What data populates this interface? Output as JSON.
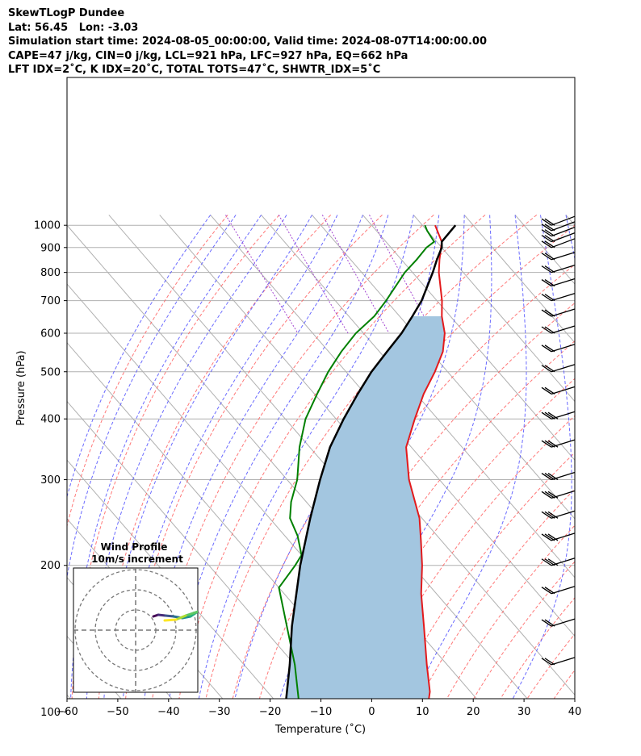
{
  "header": {
    "title": "SkewTLogP Dundee",
    "location": "Lat: 56.45   Lon: -3.03",
    "times": "Simulation start time: 2024-08-05_00:00:00, Valid time: 2024-08-07T14:00:00.00",
    "indices1": "CAPE=47 j/kg, CIN=0 j/kg, LCL=921 hPa, LFC=927 hPa, EQ=662 hPa",
    "indices2": "LFT IDX=2˚C, K IDX=20˚C, TOTAL TOTS=47˚C, SHWTR_IDX=5˚C"
  },
  "chart_data": {
    "type": "line",
    "skew": true,
    "xlabel": "Temperature (˚C)",
    "ylabel": "Pressure (hPa)",
    "xlim": [
      -60,
      40
    ],
    "ylim": [
      1050,
      100
    ],
    "y_scale": "log",
    "xticks": [
      -60,
      -50,
      -40,
      -30,
      -20,
      -10,
      0,
      10,
      20,
      30,
      40
    ],
    "xtick_labels": [
      "−60",
      "−50",
      "−40",
      "−30",
      "−20",
      "−10",
      "0",
      "10",
      "20",
      "30",
      "40"
    ],
    "yticks": [
      1000,
      900,
      800,
      700,
      600,
      500,
      400,
      300,
      200,
      100
    ],
    "grid": true,
    "colors": {
      "temperature": "#e31a1c",
      "dewpoint": "#008000",
      "parcel": "#000000",
      "cape_fill": "#a3c6e0",
      "dry_adiabats": "#ff6060",
      "moist_adiabats": "#5050ff",
      "isotherms": "#b0b0b0",
      "mixing_ratio": "#9932cc"
    },
    "series": [
      {
        "role": "temperature",
        "p": [
          1000,
          925,
          850,
          800,
          700,
          650,
          600,
          550,
          500,
          450,
          400,
          350,
          300,
          250,
          225,
          200,
          175,
          150,
          125,
          110,
          100
        ],
        "t": [
          12.5,
          11.0,
          7.5,
          5.2,
          1.0,
          -1.7,
          -4.0,
          -7.5,
          -12.5,
          -18.5,
          -24.5,
          -31.0,
          -36.0,
          -40.5,
          -44.0,
          -48.0,
          -53.0,
          -58.0,
          -64.0,
          -68.0,
          -72.0
        ]
      },
      {
        "role": "dewpoint",
        "p": [
          1000,
          975,
          925,
          900,
          850,
          800,
          700,
          650,
          600,
          550,
          500,
          450,
          400,
          350,
          300,
          270,
          250,
          230,
          210,
          200,
          180,
          150,
          125,
          100
        ],
        "t": [
          10.5,
          10.0,
          9.5,
          7.0,
          3.0,
          -1.5,
          -10.0,
          -15.0,
          -21.5,
          -27.5,
          -33.5,
          -39.5,
          -46.0,
          -52.0,
          -58.0,
          -63.0,
          -66.0,
          -67.5,
          -70.0,
          -73.0,
          -80.0,
          -85.0,
          -90.0,
          -97.0
        ]
      },
      {
        "role": "parcel",
        "p": [
          1000,
          925,
          900,
          850,
          800,
          700,
          650,
          600,
          550,
          500,
          450,
          400,
          350,
          300,
          250,
          200,
          150,
          125,
          100
        ],
        "t": [
          16.5,
          11.0,
          10.0,
          7.0,
          4.0,
          -3.0,
          -7.5,
          -12.5,
          -18.5,
          -25.0,
          -31.5,
          -38.5,
          -46.0,
          -53.5,
          -62.0,
          -72.0,
          -84.0,
          -91.0,
          -100.0
        ]
      }
    ],
    "inset": {
      "title": "Wind Profile",
      "subtitle": "10m/s increment"
    }
  }
}
